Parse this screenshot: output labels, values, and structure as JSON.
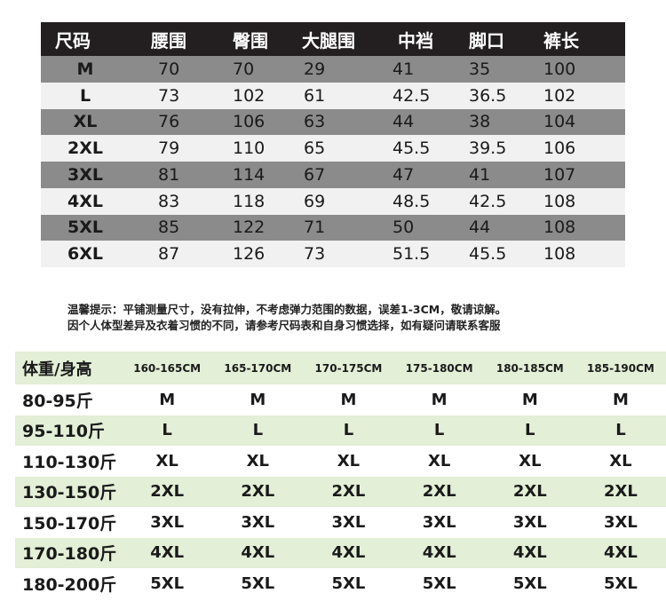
{
  "size_table": {
    "headers": [
      "尺码",
      "腰围",
      "臀围",
      "大腿围",
      "中裆",
      "脚口",
      "裤长"
    ],
    "rows": [
      [
        "M",
        "70",
        "70",
        "29",
        "41",
        "35",
        "100"
      ],
      [
        "L",
        "73",
        "102",
        "61",
        "42.5",
        "36.5",
        "102"
      ],
      [
        "XL",
        "76",
        "106",
        "63",
        "44",
        "38",
        "104"
      ],
      [
        "2XL",
        "79",
        "110",
        "65",
        "45.5",
        "39.5",
        "106"
      ],
      [
        "3XL",
        "81",
        "114",
        "67",
        "47",
        "41",
        "107"
      ],
      [
        "4XL",
        "83",
        "118",
        "69",
        "48.5",
        "42.5",
        "108"
      ],
      [
        "5XL",
        "85",
        "122",
        "71",
        "50",
        "44",
        "108"
      ],
      [
        "6XL",
        "87",
        "126",
        "73",
        "51.5",
        "45.5",
        "108"
      ]
    ]
  },
  "notice": {
    "line1": "温馨提示：平铺测量尺寸，没有拉伸，不考虑弹力范围的数据，误差1-3CM，敬请谅解。",
    "line2": "因个人体型差异及衣着习惯的不同，请参考尺码表和自身习惯选择，如有疑问请联系客服"
  },
  "recommend_table": {
    "corner": "体重/身高",
    "heights": [
      "160-165CM",
      "165-170CM",
      "170-175CM",
      "175-180CM",
      "180-185CM",
      "185-190CM"
    ],
    "rows": [
      {
        "weight": "80-95斤",
        "sizes": [
          "M",
          "M",
          "M",
          "M",
          "M",
          "M"
        ]
      },
      {
        "weight": "95-110斤",
        "sizes": [
          "L",
          "L",
          "L",
          "L",
          "L",
          "L"
        ]
      },
      {
        "weight": "110-130斤",
        "sizes": [
          "XL",
          "XL",
          "XL",
          "XL",
          "XL",
          "XL"
        ]
      },
      {
        "weight": "130-150斤",
        "sizes": [
          "2XL",
          "2XL",
          "2XL",
          "2XL",
          "2XL",
          "2XL"
        ]
      },
      {
        "weight": "150-170斤",
        "sizes": [
          "3XL",
          "3XL",
          "3XL",
          "3XL",
          "3XL",
          "3XL"
        ]
      },
      {
        "weight": "170-180斤",
        "sizes": [
          "4XL",
          "4XL",
          "4XL",
          "4XL",
          "4XL",
          "4XL"
        ]
      },
      {
        "weight": "180-200斤",
        "sizes": [
          "5XL",
          "5XL",
          "5XL",
          "5XL",
          "5XL",
          "5XL"
        ]
      }
    ]
  },
  "colors": {
    "header_dark": "#231f20",
    "row_gray": "#8b8b8b",
    "row_light": "#f1f1f1",
    "row_green": "#e3efd6"
  }
}
